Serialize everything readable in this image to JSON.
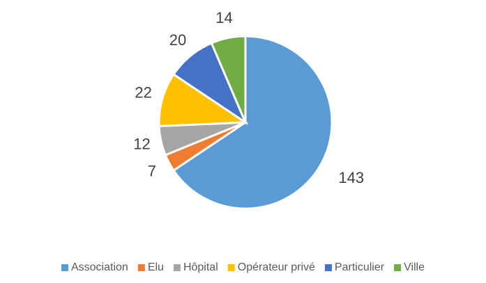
{
  "chart_data": {
    "type": "pie",
    "categories": [
      "Association",
      "Elu",
      "Hôpital",
      "Opérateur privé",
      "Particulier",
      "Ville"
    ],
    "values": [
      143,
      7,
      12,
      22,
      20,
      14
    ],
    "colors": [
      "#5b9bd5",
      "#ed7d31",
      "#a5a5a5",
      "#ffc000",
      "#4472c4",
      "#70ad47"
    ],
    "legend": "bottom"
  }
}
